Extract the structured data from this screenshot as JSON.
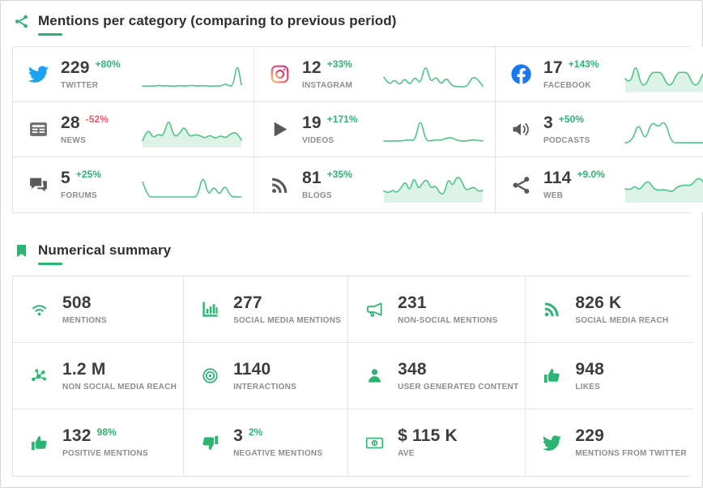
{
  "colors": {
    "accent_green": "#2bb573",
    "negative_red": "#ee5a6a",
    "spark_line": "#4ec489",
    "spark_fill": "#def3e7",
    "grid_border": "#e6e6e6",
    "label_gray": "#8d8d8d"
  },
  "sections": {
    "categories": {
      "title": "Mentions per category (comparing to previous period)",
      "icon": "share",
      "cells": [
        {
          "id": "twitter",
          "icon": "twitter",
          "icon_color": "#1da1f2",
          "value": "229",
          "delta": "+80%",
          "label": "TWITTER",
          "fill": false,
          "spark": [
            10,
            10,
            11,
            10,
            13,
            10,
            12,
            10,
            10,
            12,
            10,
            11,
            13,
            10,
            11,
            12,
            10,
            10,
            11,
            10,
            18,
            11,
            10,
            92,
            14
          ]
        },
        {
          "id": "instagram",
          "icon": "instagram",
          "icon_color": "",
          "value": "12",
          "delta": "+33%",
          "label": "INSTAGRAM",
          "fill": false,
          "spark": [
            40,
            12,
            34,
            12,
            38,
            12,
            44,
            14,
            88,
            20,
            44,
            14,
            40,
            12,
            8,
            8,
            8,
            42,
            34,
            10
          ]
        },
        {
          "id": "facebook",
          "icon": "facebook",
          "icon_color": "#1877f2",
          "value": "17",
          "delta": "+143%",
          "label": "FACEBOOK",
          "fill": true,
          "spark": [
            35,
            14,
            90,
            14,
            14,
            56,
            56,
            56,
            14,
            14,
            56,
            56,
            56,
            14,
            14,
            56,
            56,
            14,
            95,
            20
          ]
        },
        {
          "id": "news",
          "icon": "newspaper",
          "icon_color": "#6e6e6e",
          "value": "28",
          "delta": "-52%",
          "label": "NEWS",
          "fill": true,
          "spark": [
            12,
            55,
            20,
            35,
            25,
            90,
            25,
            32,
            62,
            25,
            32,
            30,
            20,
            32,
            18,
            30,
            20,
            36,
            40,
            14
          ]
        },
        {
          "id": "videos",
          "icon": "play",
          "icon_color": "#595959",
          "value": "19",
          "delta": "+171%",
          "label": "VIDEOS",
          "fill": false,
          "spark": [
            11,
            11,
            11,
            11,
            13,
            15,
            11,
            92,
            13,
            11,
            15,
            13,
            21,
            23,
            13,
            11,
            11,
            15,
            13,
            11
          ]
        },
        {
          "id": "podcasts",
          "icon": "speaker",
          "icon_color": "#595959",
          "value": "3",
          "delta": "+50%",
          "label": "PODCASTS",
          "fill": false,
          "spark": [
            5,
            5,
            76,
            8,
            78,
            55,
            82,
            6,
            5,
            5,
            5,
            5,
            5,
            5,
            5,
            5
          ]
        },
        {
          "id": "forums",
          "icon": "chat",
          "icon_color": "#595959",
          "value": "5",
          "delta": "+25%",
          "label": "FORUMS",
          "fill": false,
          "spark": [
            58,
            8,
            8,
            8,
            8,
            8,
            8,
            8,
            8,
            8,
            8,
            86,
            10,
            46,
            12,
            50,
            10,
            8,
            8
          ]
        },
        {
          "id": "blogs",
          "icon": "rss",
          "icon_color": "#595959",
          "value": "81",
          "delta": "+35%",
          "label": "BLOGS",
          "fill": true,
          "spark": [
            28,
            20,
            32,
            22,
            38,
            62,
            25,
            78,
            32,
            55,
            68,
            35,
            48,
            20,
            16,
            72,
            42,
            78,
            66,
            30,
            36,
            42,
            26,
            30
          ]
        },
        {
          "id": "web",
          "icon": "share",
          "icon_color": "#595959",
          "value": "114",
          "delta": "+9.0%",
          "label": "WEB",
          "fill": true,
          "spark": [
            36,
            30,
            46,
            30,
            52,
            62,
            36,
            30,
            33,
            30,
            25,
            42,
            46,
            48,
            46,
            66,
            72,
            46,
            36,
            38,
            30,
            28
          ]
        }
      ]
    },
    "summary": {
      "title": "Numerical summary",
      "icon": "bookmark",
      "cells": [
        {
          "id": "mentions",
          "icon": "wifi",
          "icon_color": "#2bb573",
          "value": "508",
          "label": "MENTIONS"
        },
        {
          "id": "social-media-mentions",
          "icon": "barchart",
          "icon_color": "#2bb573",
          "value": "277",
          "label": "SOCIAL MEDIA MENTIONS"
        },
        {
          "id": "non-social-mentions",
          "icon": "megaphone",
          "icon_color": "#2bb573",
          "value": "231",
          "label": "NON-SOCIAL MENTIONS"
        },
        {
          "id": "social-media-reach",
          "icon": "rss",
          "icon_color": "#2bb573",
          "value": "826 K",
          "label": "SOCIAL MEDIA REACH"
        },
        {
          "id": "non-social-media-reach",
          "icon": "network",
          "icon_color": "#2bb573",
          "value": "1.2 M",
          "label": "NON SOCIAL MEDIA REACH"
        },
        {
          "id": "interactions",
          "icon": "target",
          "icon_color": "#2bb573",
          "value": "1140",
          "label": "INTERACTIONS"
        },
        {
          "id": "user-generated-content",
          "icon": "person",
          "icon_color": "#2bb573",
          "value": "348",
          "label": "USER GENERATED CONTENT"
        },
        {
          "id": "likes",
          "icon": "thumbup",
          "icon_color": "#2bb573",
          "value": "948",
          "label": "LIKES"
        },
        {
          "id": "positive-mentions",
          "icon": "thumbup",
          "icon_color": "#2bb573",
          "value": "132",
          "delta": "98%",
          "label": "POSITIVE MENTIONS"
        },
        {
          "id": "negative-mentions",
          "icon": "thumbdown",
          "icon_color": "#2bb573",
          "value": "3",
          "delta": "2%",
          "label": "NEGATIVE MENTIONS"
        },
        {
          "id": "ave",
          "icon": "money",
          "icon_color": "#2bb573",
          "value": "$ 115 K",
          "label": "AVE"
        },
        {
          "id": "mentions-from-twitter",
          "icon": "twitter",
          "icon_color": "#2bb573",
          "value": "229",
          "label": "MENTIONS FROM TWITTER"
        }
      ]
    }
  }
}
